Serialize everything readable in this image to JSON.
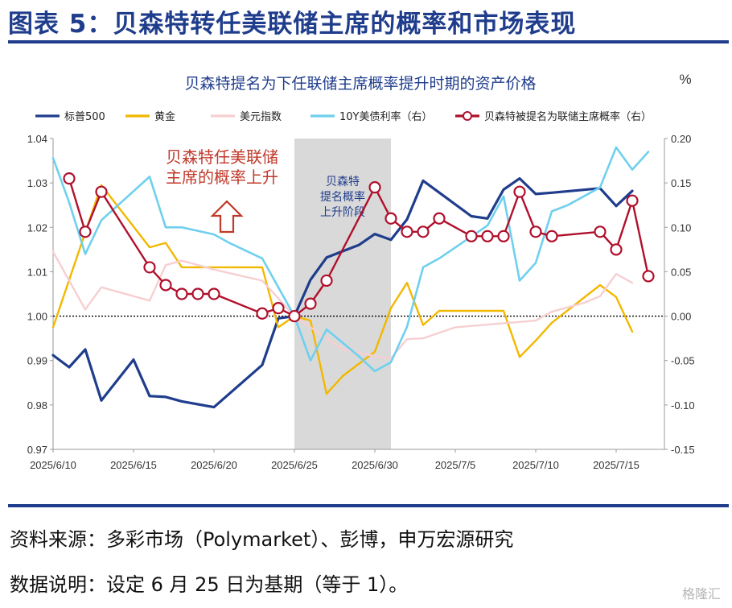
{
  "figure": {
    "title": "图表 5：贝森特转任美联储主席的概率和市场表现",
    "source": "资料来源：多彩市场（Polymarket）、彭博，申万宏源研究",
    "note": "数据说明：设定 6 月 25 日为基期（等于 1）。",
    "watermark": "格隆汇"
  },
  "chart_data": {
    "type": "line",
    "title": "贝森特提名为下任联储主席概率提升时期的资产价格",
    "right_unit": "%",
    "x_tick_labels": [
      "2025/6/10",
      "2025/6/15",
      "2025/6/20",
      "2025/6/25",
      "2025/6/30",
      "2025/7/5",
      "2025/7/10",
      "2025/7/15"
    ],
    "x_range": [
      10,
      48
    ],
    "x_tick_values": [
      10,
      15,
      20,
      25,
      30,
      35,
      40,
      45
    ],
    "ylim_left": [
      0.97,
      1.04
    ],
    "left_ticks": [
      "0.97",
      "0.98",
      "0.99",
      "1.00",
      "1.01",
      "1.02",
      "1.03",
      "1.04"
    ],
    "ylim_right": [
      -0.15,
      0.2
    ],
    "right_ticks": [
      "-0.15",
      "-0.10",
      "-0.05",
      "0.00",
      "0.05",
      "0.10",
      "0.15",
      "0.20"
    ],
    "baseline_left": 1.0,
    "shaded_band": {
      "x_start": 25,
      "x_end": 31,
      "label": [
        "贝森特",
        "提名概率",
        "上升阶段"
      ]
    },
    "annotation": {
      "text": [
        "贝森特任美联储",
        "主席的概率上升"
      ],
      "arrow": "up"
    },
    "series": [
      {
        "name": "标普500",
        "axis": "left",
        "color": "#1f3d8c",
        "width": 3.2,
        "x": [
          10,
          11,
          12,
          13,
          15,
          16,
          17,
          18,
          20,
          23,
          24,
          25,
          26,
          27,
          29,
          30,
          31,
          32,
          33,
          36,
          37,
          38,
          39,
          40,
          41,
          44,
          45,
          46
        ],
        "y": [
          0.9912,
          0.9885,
          0.9925,
          0.981,
          0.9902,
          0.982,
          0.9818,
          0.9808,
          0.9795,
          0.989,
          0.9995,
          1.0,
          1.0082,
          1.0132,
          1.016,
          1.0185,
          1.0172,
          1.0218,
          1.0305,
          1.0225,
          1.022,
          1.0285,
          1.031,
          1.0275,
          1.0278,
          1.0288,
          1.0248,
          1.0282
        ]
      },
      {
        "name": "黄金",
        "axis": "left",
        "color": "#f2b800",
        "width": 2.4,
        "x": [
          10,
          13,
          16,
          17,
          18,
          20,
          23,
          24,
          25,
          26,
          27,
          28,
          30,
          31,
          32,
          33,
          34,
          36,
          38,
          39,
          40,
          41,
          44,
          45,
          46
        ],
        "y": [
          0.9975,
          1.0295,
          1.0155,
          1.0165,
          1.011,
          1.011,
          1.011,
          0.9975,
          1.0,
          0.999,
          0.9825,
          0.9865,
          0.992,
          1.0018,
          1.0075,
          0.998,
          1.0012,
          1.0012,
          1.0012,
          0.9908,
          0.9945,
          0.9985,
          1.007,
          1.0043,
          0.9965
        ]
      },
      {
        "name": "美元指数",
        "axis": "left",
        "color": "#f6cfd1",
        "width": 2.4,
        "x": [
          10,
          12,
          13,
          16,
          17,
          18,
          20,
          23,
          25,
          28,
          30,
          31,
          32,
          33,
          35,
          40,
          41,
          43,
          44,
          45,
          46
        ],
        "y": [
          1.0145,
          1.0015,
          1.0065,
          1.0035,
          1.0115,
          1.0125,
          1.0105,
          1.008,
          1.0,
          0.9925,
          0.991,
          0.9905,
          0.9948,
          0.995,
          0.9975,
          0.999,
          1.001,
          1.003,
          1.0045,
          1.0095,
          1.0075
        ]
      },
      {
        "name": "10Y美债利率（右）",
        "axis": "right",
        "color": "#6fd0ee",
        "width": 2.6,
        "x": [
          10,
          11,
          12,
          13,
          16,
          17,
          18,
          20,
          21,
          23,
          25,
          26,
          27,
          29,
          30,
          31,
          32,
          33,
          34,
          37,
          38,
          39,
          40,
          41,
          42,
          43,
          44,
          45,
          46,
          47
        ],
        "y": [
          0.178,
          0.128,
          0.07,
          0.108,
          0.157,
          0.1,
          0.1,
          0.092,
          0.082,
          0.065,
          0.0,
          -0.05,
          -0.015,
          -0.045,
          -0.062,
          -0.052,
          -0.012,
          0.055,
          0.065,
          0.102,
          0.135,
          0.04,
          0.06,
          0.118,
          0.125,
          0.135,
          0.145,
          0.19,
          0.165,
          0.185
        ]
      },
      {
        "name": "贝森特被提名为联储主席概率（右）",
        "axis": "right",
        "color": "#b0102c",
        "width": 2.4,
        "markers": true,
        "x": [
          11,
          12,
          13,
          16,
          17,
          18,
          19,
          20,
          23,
          24,
          25,
          26,
          27,
          30,
          31,
          32,
          33,
          34,
          36,
          37,
          38,
          39,
          40,
          41,
          44,
          45,
          46,
          47
        ],
        "y": [
          0.155,
          0.095,
          0.14,
          0.055,
          0.035,
          0.025,
          0.025,
          0.025,
          0.003,
          0.009,
          0.0,
          0.014,
          0.04,
          0.145,
          0.11,
          0.095,
          0.095,
          0.11,
          0.09,
          0.09,
          0.09,
          0.14,
          0.095,
          0.09,
          0.095,
          0.075,
          0.13,
          0.045
        ]
      }
    ]
  }
}
